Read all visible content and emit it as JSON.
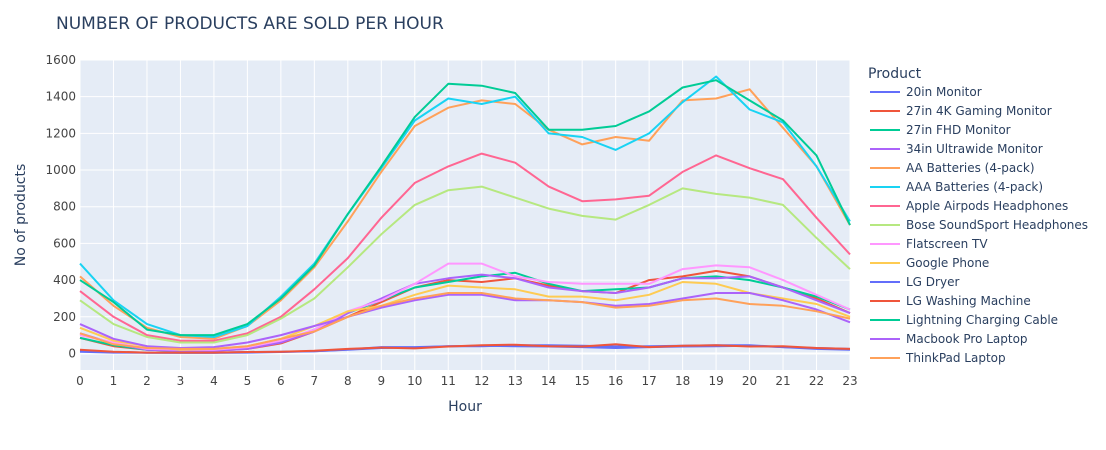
{
  "chart_data": {
    "type": "line",
    "title": "NUMBER OF PRODUCTS ARE SOLD PER HOUR",
    "xlabel": "Hour",
    "ylabel": "No of products",
    "legend_title": "Product",
    "legend_position": "right",
    "grid": true,
    "xlim": [
      0,
      23
    ],
    "ylim": [
      -90,
      1600
    ],
    "x": [
      0,
      1,
      2,
      3,
      4,
      5,
      6,
      7,
      8,
      9,
      10,
      11,
      12,
      13,
      14,
      15,
      16,
      17,
      18,
      19,
      20,
      21,
      22,
      23
    ],
    "y_ticks": [
      0,
      200,
      400,
      600,
      800,
      1000,
      1200,
      1400,
      1600
    ],
    "series": [
      {
        "name": "20in Monitor",
        "color": "#636efa",
        "values": [
          15,
          8,
          5,
          5,
          5,
          8,
          10,
          12,
          22,
          35,
          35,
          40,
          40,
          45,
          45,
          42,
          38,
          40,
          42,
          45,
          45,
          35,
          30,
          25
        ]
      },
      {
        "name": "27in 4K Gaming Monitor",
        "color": "#ef553b",
        "values": [
          85,
          40,
          20,
          15,
          15,
          25,
          55,
          120,
          200,
          280,
          360,
          400,
          390,
          410,
          370,
          340,
          330,
          400,
          420,
          450,
          420,
          360,
          300,
          220
        ]
      },
      {
        "name": "27in FHD Monitor",
        "color": "#00cc96",
        "values": [
          85,
          45,
          20,
          15,
          20,
          30,
          60,
          130,
          220,
          290,
          360,
          390,
          420,
          440,
          380,
          340,
          350,
          360,
          410,
          420,
          400,
          360,
          310,
          240
        ]
      },
      {
        "name": "34in Ultrawide Monitor",
        "color": "#ab63fa",
        "values": [
          110,
          55,
          20,
          15,
          15,
          25,
          60,
          120,
          220,
          300,
          380,
          410,
          430,
          410,
          360,
          340,
          330,
          360,
          410,
          410,
          420,
          360,
          290,
          220
        ]
      },
      {
        "name": "AA Batteries (4-pack)",
        "color": "#ffa15a",
        "values": [
          420,
          260,
          140,
          90,
          80,
          150,
          290,
          470,
          720,
          990,
          1240,
          1340,
          1380,
          1360,
          1220,
          1140,
          1180,
          1160,
          1380,
          1390,
          1440,
          1230,
          1020,
          700
        ]
      },
      {
        "name": "AAA Batteries (4-pack)",
        "color": "#19d3f3",
        "values": [
          490,
          290,
          160,
          100,
          90,
          150,
          310,
          490,
          760,
          1010,
          1270,
          1390,
          1360,
          1400,
          1200,
          1180,
          1110,
          1200,
          1370,
          1510,
          1330,
          1260,
          1020,
          720
        ]
      },
      {
        "name": "Apple Airpods Headphones",
        "color": "#ff6692",
        "values": [
          340,
          200,
          100,
          70,
          70,
          110,
          200,
          350,
          520,
          740,
          930,
          1020,
          1090,
          1040,
          910,
          830,
          840,
          860,
          990,
          1080,
          1010,
          950,
          740,
          540
        ]
      },
      {
        "name": "Bose SoundSport Headphones",
        "color": "#b6e880",
        "values": [
          290,
          160,
          90,
          60,
          60,
          100,
          190,
          300,
          470,
          650,
          810,
          890,
          910,
          850,
          790,
          750,
          730,
          810,
          900,
          870,
          850,
          810,
          630,
          460
        ]
      },
      {
        "name": "Flatscreen TV",
        "color": "#ff97ff",
        "values": [
          100,
          60,
          25,
          20,
          20,
          35,
          70,
          130,
          230,
          290,
          380,
          490,
          490,
          420,
          390,
          380,
          380,
          380,
          460,
          480,
          470,
          400,
          320,
          240
        ]
      },
      {
        "name": "Google Phone",
        "color": "#fecb52",
        "values": [
          140,
          70,
          40,
          20,
          25,
          40,
          80,
          150,
          230,
          260,
          320,
          370,
          360,
          350,
          310,
          310,
          290,
          320,
          390,
          380,
          330,
          300,
          270,
          200
        ]
      },
      {
        "name": "LG Dryer",
        "color": "#636efa",
        "values": [
          10,
          5,
          4,
          3,
          3,
          5,
          8,
          12,
          20,
          30,
          32,
          40,
          42,
          40,
          38,
          35,
          30,
          35,
          38,
          40,
          42,
          35,
          25,
          20
        ]
      },
      {
        "name": "LG Washing Machine",
        "color": "#ef553b",
        "values": [
          20,
          10,
          5,
          5,
          5,
          8,
          10,
          15,
          25,
          32,
          28,
          38,
          45,
          48,
          40,
          38,
          50,
          35,
          42,
          45,
          38,
          40,
          30,
          25
        ]
      },
      {
        "name": "Lightning Charging Cable",
        "color": "#00cc96",
        "values": [
          400,
          280,
          130,
          100,
          100,
          160,
          300,
          480,
          760,
          1020,
          1290,
          1470,
          1460,
          1420,
          1220,
          1220,
          1240,
          1320,
          1450,
          1490,
          1380,
          1270,
          1080,
          700
        ]
      },
      {
        "name": "Macbook Pro Laptop",
        "color": "#ab63fa",
        "values": [
          160,
          80,
          40,
          30,
          35,
          60,
          100,
          150,
          200,
          250,
          290,
          320,
          320,
          290,
          290,
          280,
          260,
          270,
          300,
          330,
          330,
          290,
          240,
          170
        ]
      },
      {
        "name": "ThinkPad Laptop",
        "color": "#ffa15a",
        "values": [
          110,
          50,
          30,
          25,
          25,
          40,
          80,
          120,
          200,
          260,
          300,
          330,
          330,
          300,
          290,
          280,
          250,
          260,
          290,
          300,
          270,
          260,
          230,
          190
        ]
      }
    ]
  }
}
